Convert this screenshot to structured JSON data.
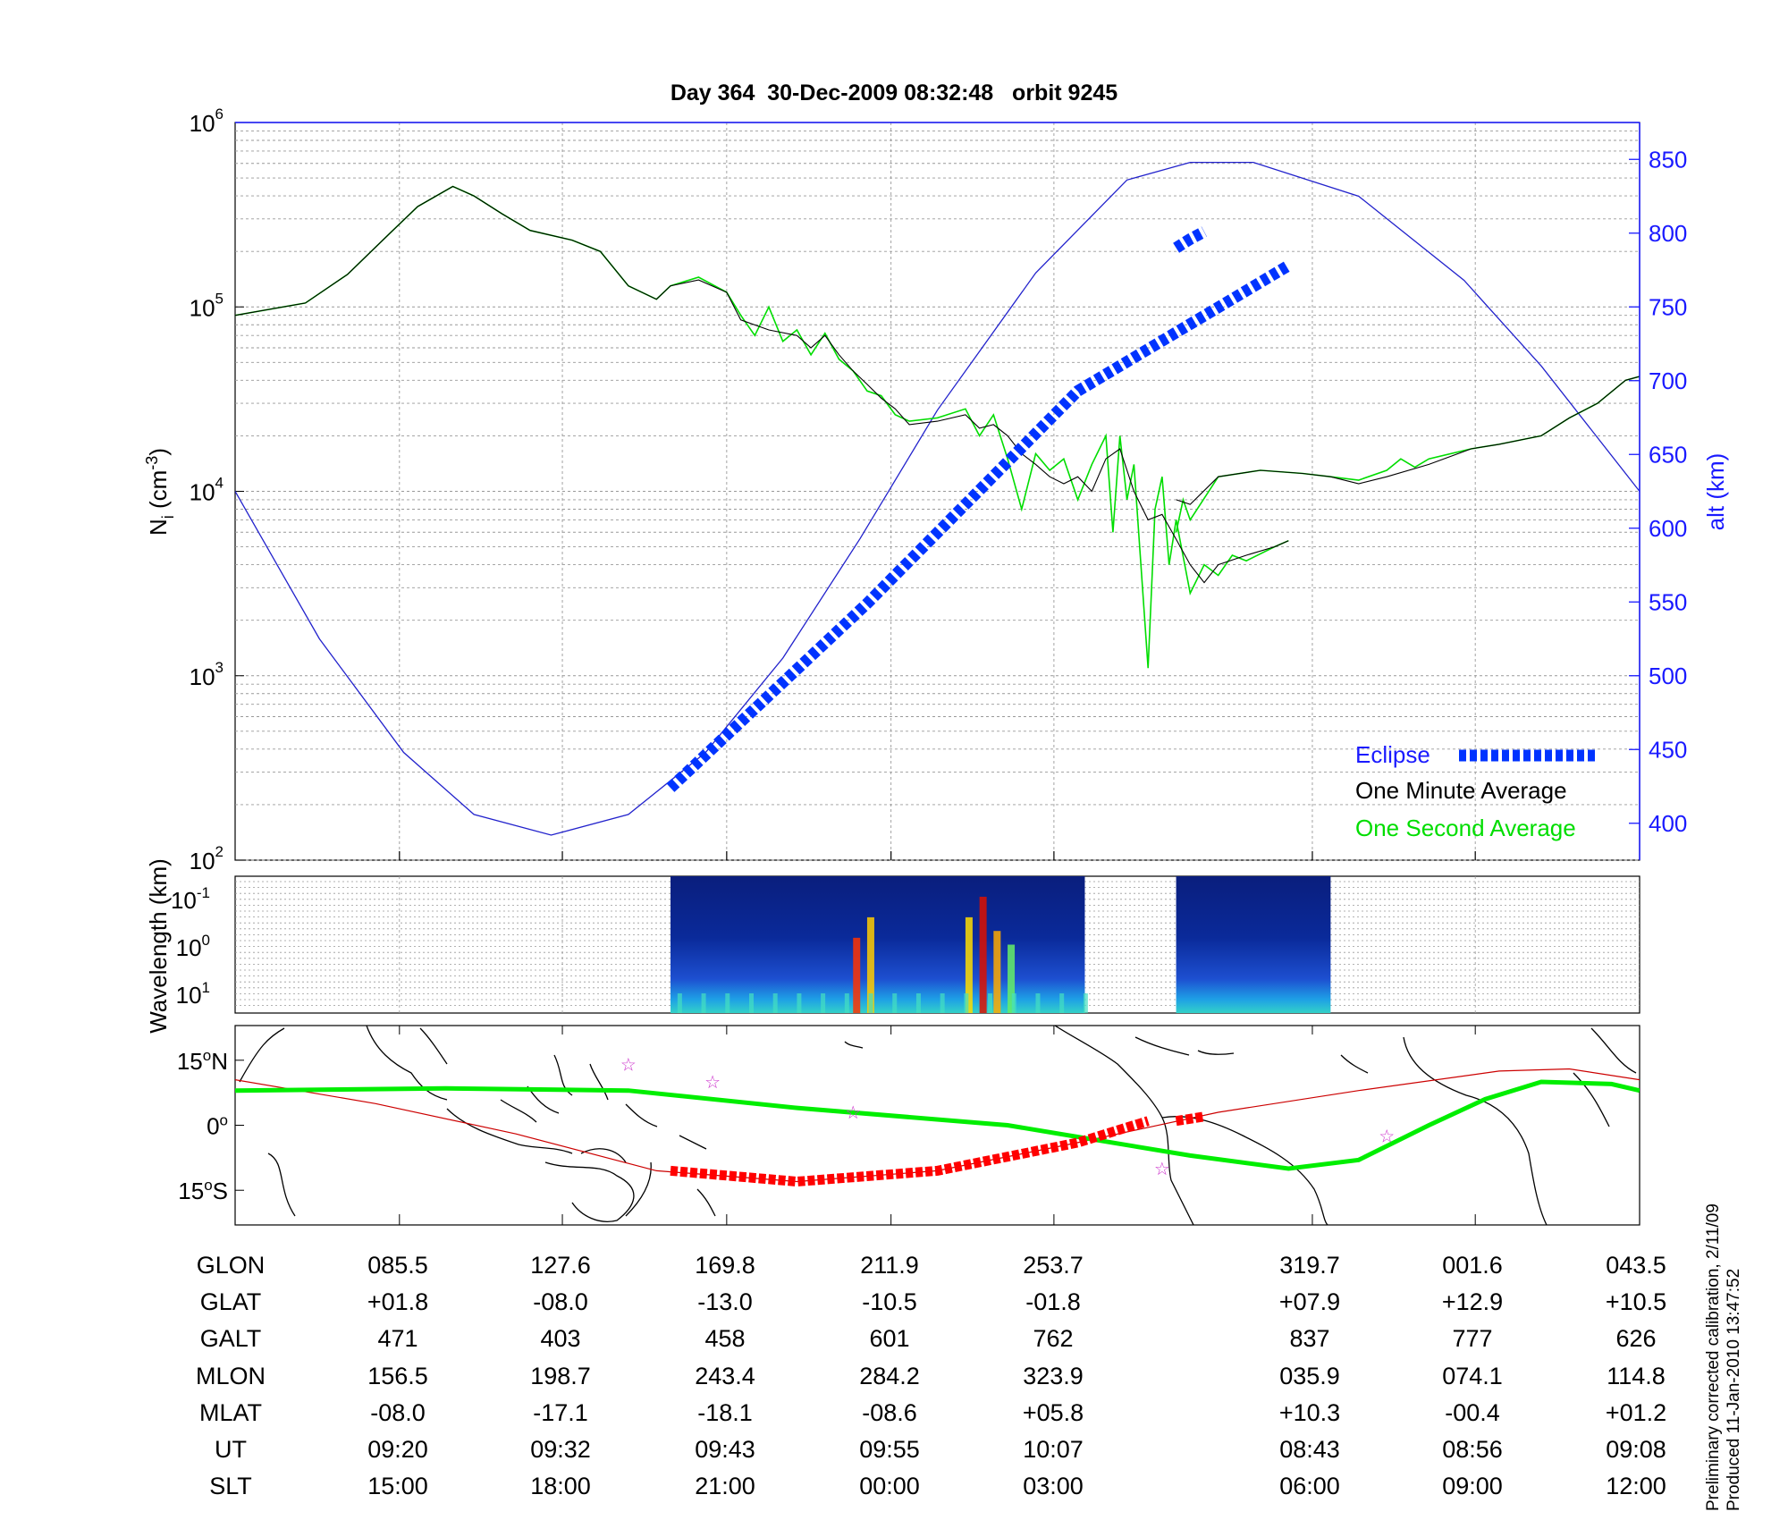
{
  "title": "Day 364  30-Dec-2009 08:32:48   orbit 9245",
  "colors": {
    "alt_axis": "#1a1aff",
    "eclipse": "#0033ff",
    "minute": "#000000",
    "second": "#00dd00",
    "track_eclipse": "#ff0000",
    "magnetic_equator": "#00ee00",
    "orbit_track": "#cc0000",
    "stars": "#cc33cc"
  },
  "chart_data": [
    {
      "type": "line",
      "panel": "density",
      "x_ticks": [
        "09:20",
        "09:32",
        "09:43",
        "09:55",
        "10:07",
        "08:43",
        "08:56",
        "09:08"
      ],
      "ylabel": "N",
      "ylabel_sub": "i",
      "ylabel_unit": " (cm",
      "ylabel_unit_sup": "-3",
      "ylabel_close": ")",
      "yscale": "log",
      "ylim": [
        100,
        1000000
      ],
      "y_ticks": [
        {
          "base": "10",
          "exp": "2"
        },
        {
          "base": "10",
          "exp": "3"
        },
        {
          "base": "10",
          "exp": "4"
        },
        {
          "base": "10",
          "exp": "5"
        },
        {
          "base": "10",
          "exp": "6"
        }
      ],
      "y2label": "alt (km)",
      "y2lim": [
        375,
        875
      ],
      "y2_ticks": [
        "400",
        "450",
        "500",
        "550",
        "600",
        "650",
        "700",
        "750",
        "800",
        "850"
      ],
      "xlim": [
        0,
        100
      ],
      "series": [
        {
          "name": "One Minute Average",
          "segments": [
            [
              [
                0,
                90000
              ],
              [
                5,
                105000
              ],
              [
                8,
                150000
              ],
              [
                11,
                250000
              ],
              [
                13,
                350000
              ],
              [
                15.5,
                450000
              ],
              [
                17,
                400000
              ],
              [
                19,
                320000
              ],
              [
                21,
                260000
              ],
              [
                24,
                230000
              ],
              [
                26,
                200000
              ],
              [
                28,
                130000
              ],
              [
                30,
                110000
              ],
              [
                31,
                130000
              ],
              [
                33,
                140000
              ],
              [
                35,
                120000
              ],
              [
                36,
                85000
              ],
              [
                38,
                75000
              ],
              [
                40,
                70000
              ],
              [
                41,
                60000
              ],
              [
                42,
                70000
              ],
              [
                43,
                55000
              ],
              [
                44,
                45000
              ],
              [
                45,
                38000
              ],
              [
                46,
                32000
              ],
              [
                47,
                28000
              ],
              [
                48,
                23000
              ],
              [
                50,
                24000
              ],
              [
                52,
                26000
              ],
              [
                53,
                22000
              ],
              [
                54,
                23000
              ],
              [
                55,
                20000
              ],
              [
                56,
                16000
              ],
              [
                57,
                14000
              ],
              [
                58,
                12000
              ],
              [
                59,
                11000
              ],
              [
                60,
                12000
              ],
              [
                61,
                10000
              ],
              [
                62,
                15000
              ],
              [
                63,
                17000
              ],
              [
                64,
                10000
              ],
              [
                65,
                7000
              ],
              [
                66,
                7500
              ],
              [
                67,
                5500
              ],
              [
                68,
                4000
              ],
              [
                69,
                3200
              ],
              [
                70,
                4000
              ],
              [
                72,
                4500
              ],
              [
                74,
                5000
              ],
              [
                75,
                5400
              ]
            ],
            [
              [
                67,
                9000
              ],
              [
                68,
                8500
              ],
              [
                70,
                12000
              ],
              [
                73,
                13000
              ],
              [
                76,
                12500
              ],
              [
                78,
                12000
              ],
              [
                80,
                11000
              ],
              [
                82,
                12000
              ],
              [
                85,
                14000
              ],
              [
                88,
                17000
              ],
              [
                90,
                18000
              ],
              [
                93,
                20000
              ],
              [
                95,
                25000
              ],
              [
                97,
                30000
              ],
              [
                99,
                40000
              ],
              [
                100,
                42000
              ]
            ]
          ]
        },
        {
          "name": "One Second Average",
          "segments": [
            [
              [
                0,
                90000
              ],
              [
                5,
                105000
              ],
              [
                8,
                150000
              ],
              [
                11,
                250000
              ],
              [
                13,
                350000
              ],
              [
                15.5,
                450000
              ],
              [
                17,
                400000
              ],
              [
                19,
                320000
              ],
              [
                21,
                260000
              ],
              [
                24,
                230000
              ],
              [
                26,
                200000
              ],
              [
                28,
                130000
              ],
              [
                30,
                110000
              ],
              [
                31,
                130000
              ],
              [
                33,
                145000
              ],
              [
                35,
                120000
              ],
              [
                36,
                90000
              ],
              [
                37,
                70000
              ],
              [
                38,
                100000
              ],
              [
                39,
                65000
              ],
              [
                40,
                75000
              ],
              [
                41,
                55000
              ],
              [
                42,
                72000
              ],
              [
                43,
                52000
              ],
              [
                44,
                45000
              ],
              [
                45,
                35000
              ],
              [
                46,
                33000
              ],
              [
                47,
                26000
              ],
              [
                48,
                24000
              ],
              [
                50,
                25000
              ],
              [
                52,
                28000
              ],
              [
                53,
                20000
              ],
              [
                54,
                26000
              ],
              [
                55,
                15000
              ],
              [
                56,
                8000
              ],
              [
                57,
                16000
              ],
              [
                58,
                13000
              ],
              [
                59,
                15000
              ],
              [
                60,
                9000
              ],
              [
                61,
                14000
              ],
              [
                62,
                20000
              ],
              [
                62.5,
                6000
              ],
              [
                63,
                20000
              ],
              [
                63.5,
                9000
              ],
              [
                64,
                14000
              ],
              [
                65,
                1100
              ],
              [
                65.5,
                8000
              ],
              [
                66,
                12000
              ],
              [
                66.5,
                4000
              ],
              [
                67,
                7000
              ],
              [
                68,
                2800
              ],
              [
                69,
                4000
              ],
              [
                70,
                3500
              ],
              [
                71,
                4500
              ],
              [
                72,
                4200
              ],
              [
                74,
                5000
              ],
              [
                75,
                5400
              ]
            ],
            [
              [
                67,
                6000
              ],
              [
                67.5,
                9000
              ],
              [
                68,
                7000
              ],
              [
                70,
                12000
              ],
              [
                73,
                13000
              ],
              [
                76,
                12500
              ],
              [
                78,
                12000
              ],
              [
                80,
                11500
              ],
              [
                82,
                13000
              ],
              [
                83,
                15000
              ],
              [
                84,
                13500
              ],
              [
                85,
                15000
              ],
              [
                88,
                17000
              ],
              [
                90,
                18000
              ],
              [
                93,
                20000
              ],
              [
                95,
                25000
              ],
              [
                97,
                30000
              ],
              [
                99,
                40000
              ],
              [
                100,
                42000
              ]
            ]
          ]
        },
        {
          "name": "altitude",
          "values_km": [
            [
              0,
              625
            ],
            [
              6,
              525
            ],
            [
              12,
              448
            ],
            [
              17,
              406
            ],
            [
              22.5,
              392
            ],
            [
              28,
              406
            ],
            [
              33.5,
              448
            ],
            [
              39,
              512
            ],
            [
              44.5,
              593
            ],
            [
              50,
              680
            ],
            [
              57,
              773
            ],
            [
              63.5,
              836
            ],
            [
              68,
              848
            ],
            [
              72.5,
              848
            ],
            [
              80,
              825
            ],
            [
              87.5,
              768
            ],
            [
              93,
              710
            ],
            [
              100,
              625
            ]
          ]
        },
        {
          "name": "Eclipse",
          "segments_km": [
            [
              [
                31,
                424
              ],
              [
                45,
                549
              ],
              [
                60,
                693
              ],
              [
                75,
                778
              ]
            ],
            [
              [
                67,
                790
              ],
              [
                68,
                796
              ],
              [
                69,
                801
              ]
            ]
          ]
        }
      ],
      "legend": {
        "placement": "bottom-right",
        "entries": [
          "Eclipse",
          "One Minute Average",
          "One Second Average"
        ]
      }
    },
    {
      "type": "heatmap",
      "panel": "spectrogram",
      "ylabel": "Wavelength (km)",
      "y_ticks": [
        {
          "base": "10",
          "exp": "-1"
        },
        {
          "base": "10",
          "exp": "0"
        },
        {
          "base": "10",
          "exp": "1"
        }
      ],
      "x_segments_with_data": [
        [
          31,
          60.5
        ],
        [
          67,
          78
        ]
      ]
    },
    {
      "type": "map",
      "panel": "ground-track",
      "y_ticks": [
        {
          "label": "15",
          "unit": "N"
        },
        {
          "label": "0",
          "unit": ""
        },
        {
          "label": "15",
          "unit": "S"
        }
      ],
      "ylim": [
        -23,
        23
      ],
      "magnetic_equator_lat": [
        [
          0,
          8
        ],
        [
          15,
          8.5
        ],
        [
          28,
          8
        ],
        [
          40,
          4
        ],
        [
          55,
          0
        ],
        [
          68,
          -7
        ],
        [
          75,
          -10
        ],
        [
          80,
          -8
        ],
        [
          85,
          0
        ],
        [
          89,
          6
        ],
        [
          93,
          10
        ],
        [
          98,
          9.5
        ],
        [
          100,
          8
        ]
      ],
      "orbit_track_lat": [
        [
          0,
          10.5
        ],
        [
          10,
          5
        ],
        [
          20,
          -2
        ],
        [
          30,
          -10.5
        ],
        [
          40,
          -13
        ],
        [
          50,
          -10.5
        ],
        [
          60,
          -4
        ],
        [
          65,
          -0.5
        ],
        [
          70,
          3
        ],
        [
          80,
          8
        ],
        [
          90,
          12.5
        ],
        [
          95,
          13
        ],
        [
          100,
          10.5
        ]
      ],
      "eclipse_track_lat": [
        [
          [
            31,
            -10.5
          ],
          [
            40,
            -13
          ],
          [
            50,
            -10.5
          ],
          [
            60,
            -4
          ],
          [
            65,
            1
          ]
        ],
        [
          [
            67,
            1
          ],
          [
            69,
            2
          ]
        ]
      ],
      "stars": [
        [
          28,
          14
        ],
        [
          34,
          10
        ],
        [
          44,
          3
        ],
        [
          66,
          -10
        ],
        [
          82,
          -2.5
        ]
      ]
    }
  ],
  "table": {
    "rows": [
      "GLON",
      "GLAT",
      "GALT",
      "MLON",
      "MLAT",
      "UT",
      "SLT"
    ],
    "columns": [
      [
        "085.5",
        "+01.8",
        "471",
        "156.5",
        "-08.0",
        "09:20",
        "15:00"
      ],
      [
        "127.6",
        "-08.0",
        "403",
        "198.7",
        "-17.1",
        "09:32",
        "18:00"
      ],
      [
        "169.8",
        "-13.0",
        "458",
        "243.4",
        "-18.1",
        "09:43",
        "21:00"
      ],
      [
        "211.9",
        "-10.5",
        "601",
        "284.2",
        "-08.6",
        "09:55",
        "00:00"
      ],
      [
        "253.7",
        "-01.8",
        "762",
        "323.9",
        "+05.8",
        "10:07",
        "03:00"
      ],
      [
        "319.7",
        "+07.9",
        "837",
        "035.9",
        "+10.3",
        "08:43",
        "06:00"
      ],
      [
        "001.6",
        "+12.9",
        "777",
        "074.1",
        "-00.4",
        "08:56",
        "09:00"
      ],
      [
        "043.5",
        "+10.5",
        "626",
        "114.8",
        "+01.2",
        "09:08",
        "12:00"
      ]
    ]
  },
  "footer": {
    "line1": "Preliminary corrected calibration, 2/11/09",
    "line2": "Produced 11-Jan-2010 13:47:52"
  }
}
